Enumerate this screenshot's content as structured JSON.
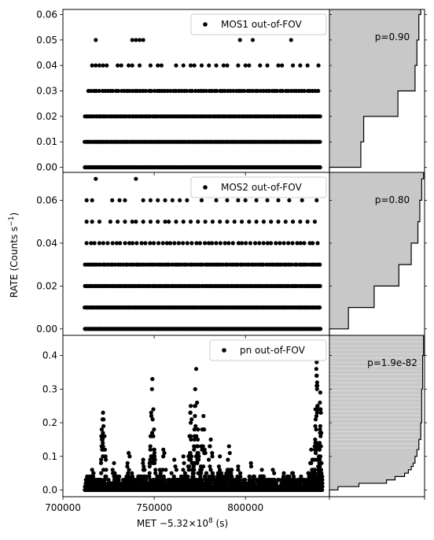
{
  "chart_data": {
    "type": "scatter",
    "xlabel_prefix": "MET −5.32×10",
    "xlabel_exp": "8",
    "xlabel_suffix": " (s)",
    "ylabel_main": "RATE (Counts s",
    "ylabel_exp": "−1",
    "ylabel_close": ")",
    "xlim": [
      700000,
      846000
    ],
    "x_ticks": [
      700000,
      750000,
      800000
    ],
    "x_tick_labels": [
      "700000",
      "750000",
      "800000"
    ],
    "panels": [
      {
        "legend": "MOS1 out-of-FOV",
        "p_value": "p=0.90",
        "ylim": [
          -0.002,
          0.062
        ],
        "y_ticks": [
          0.0,
          0.01,
          0.02,
          0.03,
          0.04,
          0.05,
          0.06
        ],
        "y_tick_labels": [
          "0.00",
          "0.01",
          "0.02",
          "0.03",
          "0.04",
          "0.05",
          "0.06"
        ],
        "levels": [
          {
            "y": 0.0,
            "xmin": 712000,
            "xmax": 841000,
            "step": 500
          },
          {
            "y": 0.01,
            "xmin": 712000,
            "xmax": 841000,
            "step": 700
          },
          {
            "y": 0.02,
            "xmin": 712000,
            "xmax": 841000,
            "step": 1000
          },
          {
            "y": 0.03,
            "xmin": 714000,
            "xmax": 841000,
            "step": 1500
          },
          {
            "y": 0.04,
            "x": [
              716000,
              718000,
              720000,
              722000,
              724000,
              730000,
              732000,
              736000,
              738000,
              742000,
              748000,
              752000,
              754000,
              762000,
              766000,
              770000,
              772000,
              776000,
              780000,
              784000,
              788000,
              790000,
              796000,
              800000,
              802000,
              808000,
              812000,
              818000,
              820000,
              826000,
              830000,
              834000,
              840000
            ]
          },
          {
            "y": 0.05,
            "x": [
              718000,
              738000,
              740000,
              742000,
              744000,
              797000,
              804000,
              825000
            ]
          }
        ],
        "hist_cdf": [
          [
            0.0,
            0.33
          ],
          [
            0.01,
            0.36
          ],
          [
            0.02,
            0.72
          ],
          [
            0.03,
            0.9
          ],
          [
            0.04,
            0.92
          ],
          [
            0.05,
            0.94
          ],
          [
            0.06,
            0.96
          ]
        ]
      },
      {
        "legend": "MOS2 out-of-FOV",
        "p_value": "p=0.80",
        "ylim": [
          -0.003,
          0.073
        ],
        "y_ticks": [
          0.0,
          0.02,
          0.04,
          0.06
        ],
        "y_tick_labels": [
          "0.00",
          "0.02",
          "0.04",
          "0.06"
        ],
        "levels": [
          {
            "y": 0.0,
            "xmin": 712000,
            "xmax": 841000,
            "step": 500
          },
          {
            "y": 0.01,
            "xmin": 712000,
            "xmax": 841000,
            "step": 700
          },
          {
            "y": 0.02,
            "xmin": 712000,
            "xmax": 841000,
            "step": 1000
          },
          {
            "y": 0.03,
            "xmin": 712000,
            "xmax": 841000,
            "step": 1400
          },
          {
            "y": 0.04,
            "xmin": 713000,
            "xmax": 840000,
            "step": 2300
          },
          {
            "y": 0.05,
            "x": [
              713000,
              716000,
              720000,
              726000,
              730000,
              734000,
              738000,
              740000,
              744000,
              748000,
              752000,
              756000,
              758000,
              762000,
              766000,
              770000,
              774000,
              778000,
              782000,
              786000,
              790000,
              794000,
              798000,
              802000,
              806000,
              810000,
              814000,
              818000,
              822000,
              826000,
              830000,
              834000,
              838000
            ]
          },
          {
            "y": 0.06,
            "x": [
              713000,
              716000,
              727000,
              731000,
              734000,
              744000,
              748000,
              752000,
              756000,
              760000,
              764000,
              768000,
              776000,
              784000,
              790000,
              796000,
              800000,
              806000,
              812000,
              818000,
              824000,
              831000,
              839000
            ]
          },
          {
            "y": 0.07,
            "x": [
              718000,
              740000
            ]
          }
        ],
        "hist_cdf": [
          [
            0.0,
            0.2
          ],
          [
            0.01,
            0.47
          ],
          [
            0.02,
            0.73
          ],
          [
            0.03,
            0.86
          ],
          [
            0.04,
            0.93
          ],
          [
            0.05,
            0.95
          ],
          [
            0.06,
            0.97
          ],
          [
            0.07,
            0.99
          ]
        ]
      },
      {
        "legend": "pn out-of-FOV",
        "p_value": "p=1.9e-82",
        "ylim": [
          -0.02,
          0.46
        ],
        "y_ticks": [
          0.0,
          0.1,
          0.2,
          0.3,
          0.4
        ],
        "y_tick_labels": [
          "0.0",
          "0.1",
          "0.2",
          "0.3",
          "0.4"
        ],
        "baseline": {
          "xmin": 712000,
          "xmax": 842000,
          "step": 400
        },
        "flares": [
          {
            "x": 716000,
            "w": 2500,
            "peak": 0.06
          },
          {
            "x": 722000,
            "w": 1500,
            "peak": 0.23
          },
          {
            "x": 728000,
            "w": 1500,
            "peak": 0.08
          },
          {
            "x": 736000,
            "w": 2000,
            "peak": 0.11
          },
          {
            "x": 744000,
            "w": 1500,
            "peak": 0.09
          },
          {
            "x": 749000,
            "w": 1200,
            "peak": 0.33
          },
          {
            "x": 755000,
            "w": 2500,
            "peak": 0.12
          },
          {
            "x": 761000,
            "w": 2000,
            "peak": 0.09
          },
          {
            "x": 766000,
            "w": 1500,
            "peak": 0.1
          },
          {
            "x": 770000,
            "w": 1200,
            "peak": 0.25
          },
          {
            "x": 773000,
            "w": 1200,
            "peak": 0.36
          },
          {
            "x": 777000,
            "w": 1500,
            "peak": 0.22
          },
          {
            "x": 781000,
            "w": 1500,
            "peak": 0.15
          },
          {
            "x": 786000,
            "w": 1500,
            "peak": 0.1
          },
          {
            "x": 791000,
            "w": 1500,
            "peak": 0.13
          },
          {
            "x": 796000,
            "w": 2000,
            "peak": 0.07
          },
          {
            "x": 803000,
            "w": 1500,
            "peak": 0.08
          },
          {
            "x": 809000,
            "w": 1200,
            "peak": 0.06
          },
          {
            "x": 815000,
            "w": 1500,
            "peak": 0.06
          },
          {
            "x": 821000,
            "w": 1200,
            "peak": 0.05
          },
          {
            "x": 826000,
            "w": 1500,
            "peak": 0.05
          },
          {
            "x": 836000,
            "w": 1500,
            "peak": 0.12
          },
          {
            "x": 839000,
            "w": 1000,
            "peak": 0.38
          },
          {
            "x": 841000,
            "w": 700,
            "peak": 0.29
          }
        ],
        "hist_cdf": [
          [
            0.0,
            0.09
          ],
          [
            0.01,
            0.31
          ],
          [
            0.02,
            0.6
          ],
          [
            0.03,
            0.69
          ],
          [
            0.04,
            0.79
          ],
          [
            0.05,
            0.83
          ],
          [
            0.06,
            0.86
          ],
          [
            0.07,
            0.88
          ],
          [
            0.08,
            0.9
          ],
          [
            0.1,
            0.92
          ],
          [
            0.12,
            0.94
          ],
          [
            0.15,
            0.96
          ],
          [
            0.2,
            0.97
          ],
          [
            0.3,
            0.98
          ],
          [
            0.4,
            0.99
          ]
        ]
      }
    ]
  }
}
